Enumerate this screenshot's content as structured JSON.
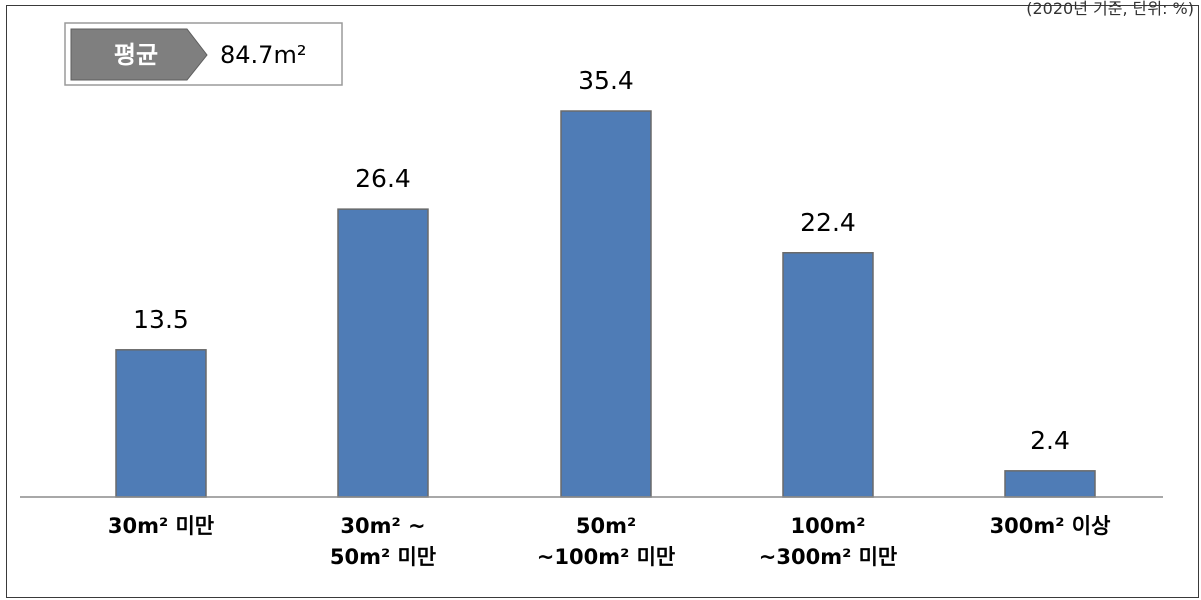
{
  "note": "(2020년 기준, 단위: %)",
  "average": {
    "label": "평균",
    "value": "84.7m²"
  },
  "chart_data": {
    "type": "bar",
    "categories": [
      [
        "30m² 미만"
      ],
      [
        "30m² ~",
        "50m² 미만"
      ],
      [
        "50m²",
        "~100m² 미만"
      ],
      [
        "100m²",
        "~300m² 미만"
      ],
      [
        "300m² 이상"
      ]
    ],
    "values": [
      13.5,
      26.4,
      35.4,
      22.4,
      2.4
    ],
    "value_labels": [
      "13.5",
      "26.4",
      "35.4",
      "22.4",
      "2.4"
    ],
    "ylim": [
      0,
      35.4
    ],
    "bar_color": "#4f7cb6",
    "bar_edge_color": "#6a6a6a",
    "grid": false
  }
}
